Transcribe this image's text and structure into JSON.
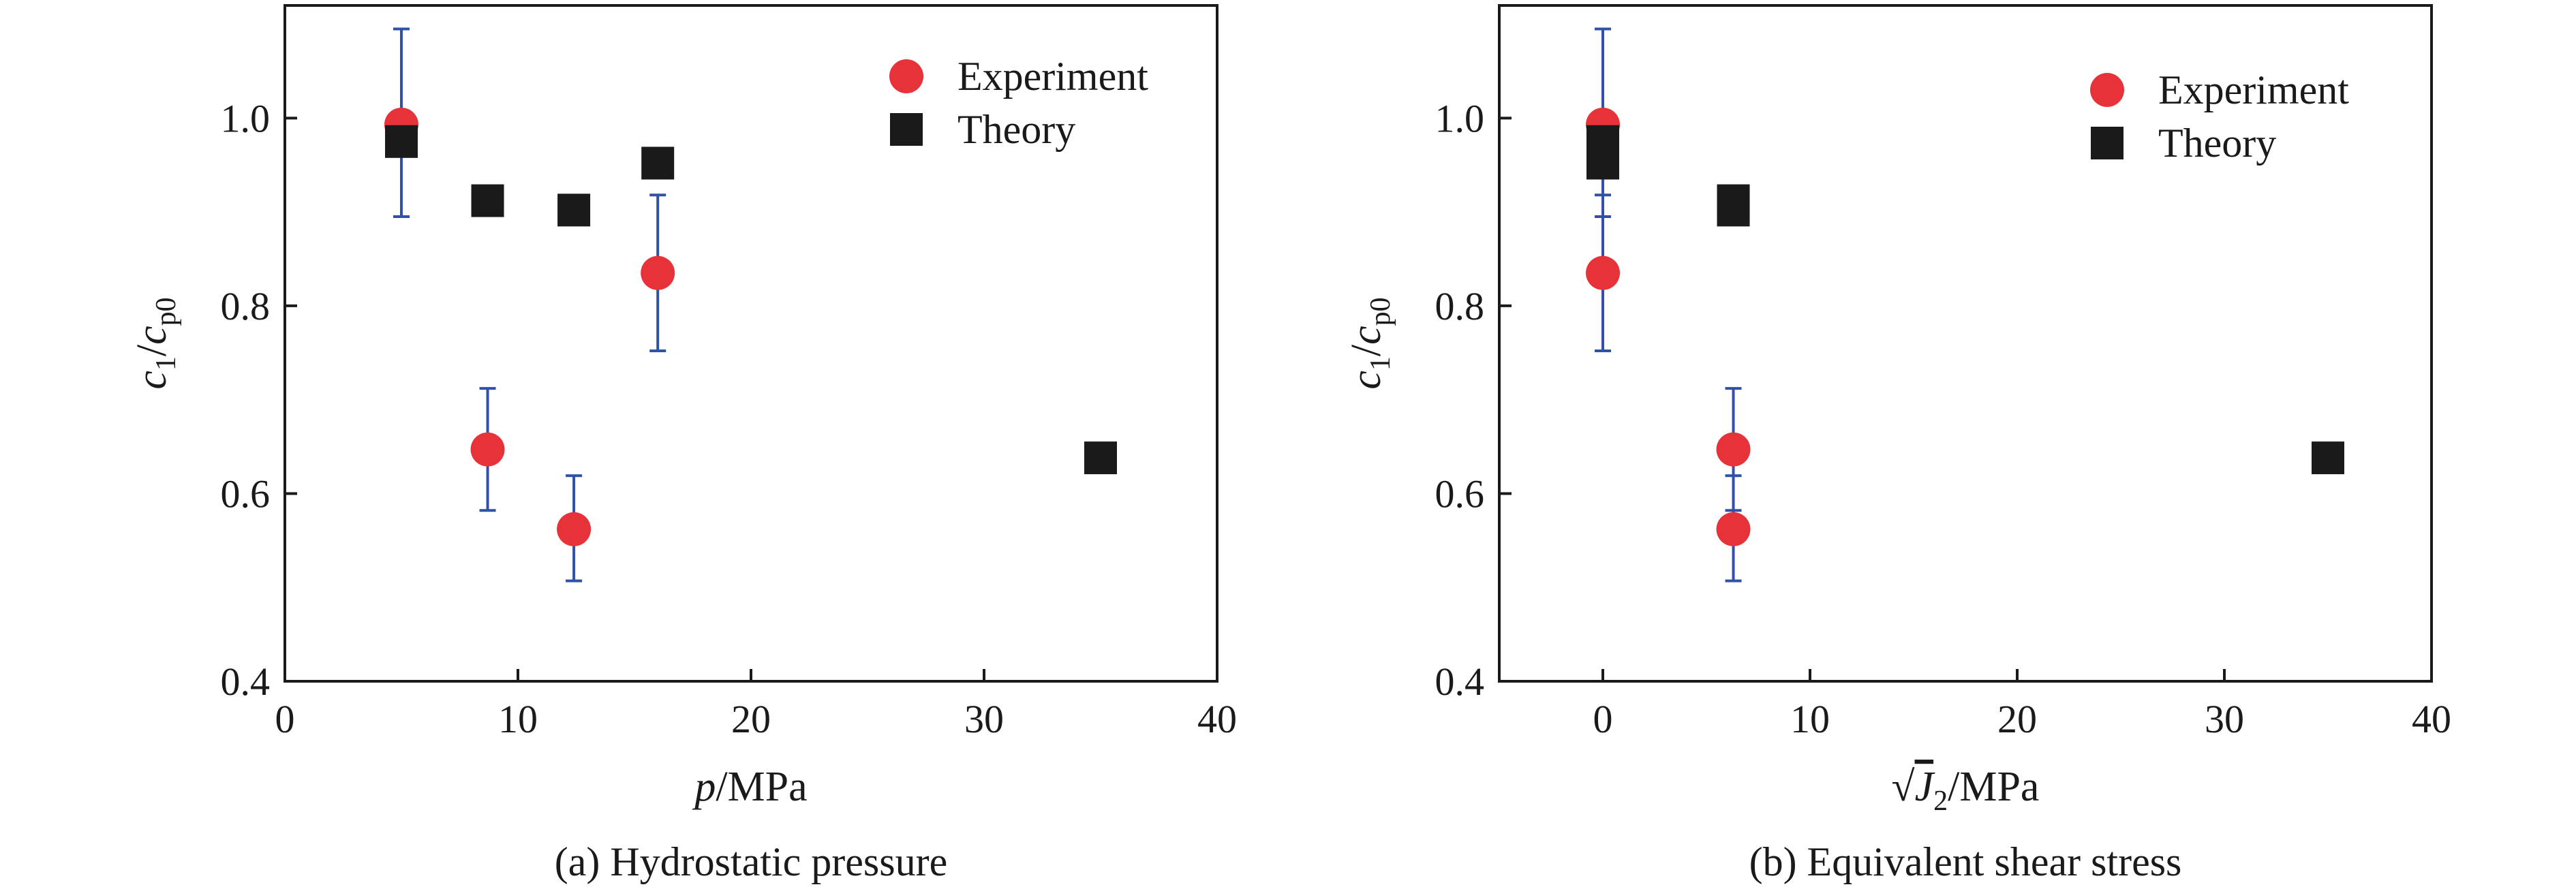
{
  "chart_data": [
    {
      "type": "scatter",
      "caption": "(a) Hydrostatic pressure",
      "xlabel": {
        "var": "p",
        "unit": "/MPa"
      },
      "ylabel": {
        "c": "c",
        "sub1": "1",
        "slash": "/",
        "sub2": "p0"
      },
      "xlim": [
        0,
        40
      ],
      "ylim": [
        0.4,
        1.12
      ],
      "xticks": [
        0,
        10,
        20,
        30,
        40
      ],
      "xtick_labels": [
        "0",
        "10",
        "20",
        "30",
        "40"
      ],
      "yticks": [
        0.4,
        0.6,
        0.8,
        1.0
      ],
      "ytick_labels": [
        "0.4",
        "0.6",
        "0.8",
        "1.0"
      ],
      "grid": false,
      "legend_position": "top-right",
      "series": [
        {
          "name": "Experiment",
          "marker": "circle",
          "color": "#e8323a",
          "points": [
            {
              "x": 5.0,
              "y": 0.993,
              "err_low": 0.895,
              "err_high": 1.095
            },
            {
              "x": 8.7,
              "y": 0.647,
              "err_low": 0.582,
              "err_high": 0.712
            },
            {
              "x": 12.4,
              "y": 0.562,
              "err_low": 0.507,
              "err_high": 0.619
            },
            {
              "x": 16.0,
              "y": 0.835,
              "err_low": 0.752,
              "err_high": 0.918
            }
          ]
        },
        {
          "name": "Theory",
          "marker": "square",
          "color": "#1a1a1a",
          "points": [
            {
              "x": 5.0,
              "y": 0.975
            },
            {
              "x": 8.7,
              "y": 0.912
            },
            {
              "x": 12.4,
              "y": 0.902
            },
            {
              "x": 16.0,
              "y": 0.952
            },
            {
              "x": 35.0,
              "y": 0.638
            }
          ]
        }
      ]
    },
    {
      "type": "scatter",
      "caption": "(b) Equivalent shear stress",
      "xlabel": {
        "sqrt": "√",
        "var": "J",
        "sub": "2",
        "unit": "/MPa"
      },
      "ylabel": {
        "c": "c",
        "sub1": "1",
        "slash": "/",
        "sub2": "p0"
      },
      "xlim": [
        -5,
        40
      ],
      "ylim": [
        0.4,
        1.12
      ],
      "xticks": [
        0,
        10,
        20,
        30,
        40
      ],
      "xtick_labels": [
        "0",
        "10",
        "20",
        "30",
        "40"
      ],
      "yticks": [
        0.4,
        0.6,
        0.8,
        1.0
      ],
      "ytick_labels": [
        "0.4",
        "0.6",
        "0.8",
        "1.0"
      ],
      "grid": false,
      "legend_position": "top-right",
      "series": [
        {
          "name": "Experiment",
          "marker": "circle",
          "color": "#e8323a",
          "points": [
            {
              "x": 0.0,
              "y": 0.993,
              "err_low": 0.895,
              "err_high": 1.095
            },
            {
              "x": 0.0,
              "y": 0.835,
              "err_low": 0.752,
              "err_high": 0.918
            },
            {
              "x": 6.3,
              "y": 0.647,
              "err_low": 0.582,
              "err_high": 0.712
            },
            {
              "x": 6.3,
              "y": 0.562,
              "err_low": 0.507,
              "err_high": 0.619
            }
          ]
        },
        {
          "name": "Theory",
          "marker": "square",
          "color": "#1a1a1a",
          "points": [
            {
              "x": 0.0,
              "y": 0.975
            },
            {
              "x": 0.0,
              "y": 0.952
            },
            {
              "x": 6.3,
              "y": 0.912
            },
            {
              "x": 6.3,
              "y": 0.902
            },
            {
              "x": 35.0,
              "y": 0.638
            }
          ]
        }
      ]
    }
  ],
  "colors": {
    "errorbar": "#2f52a8",
    "axis": "#1a1a1a"
  }
}
